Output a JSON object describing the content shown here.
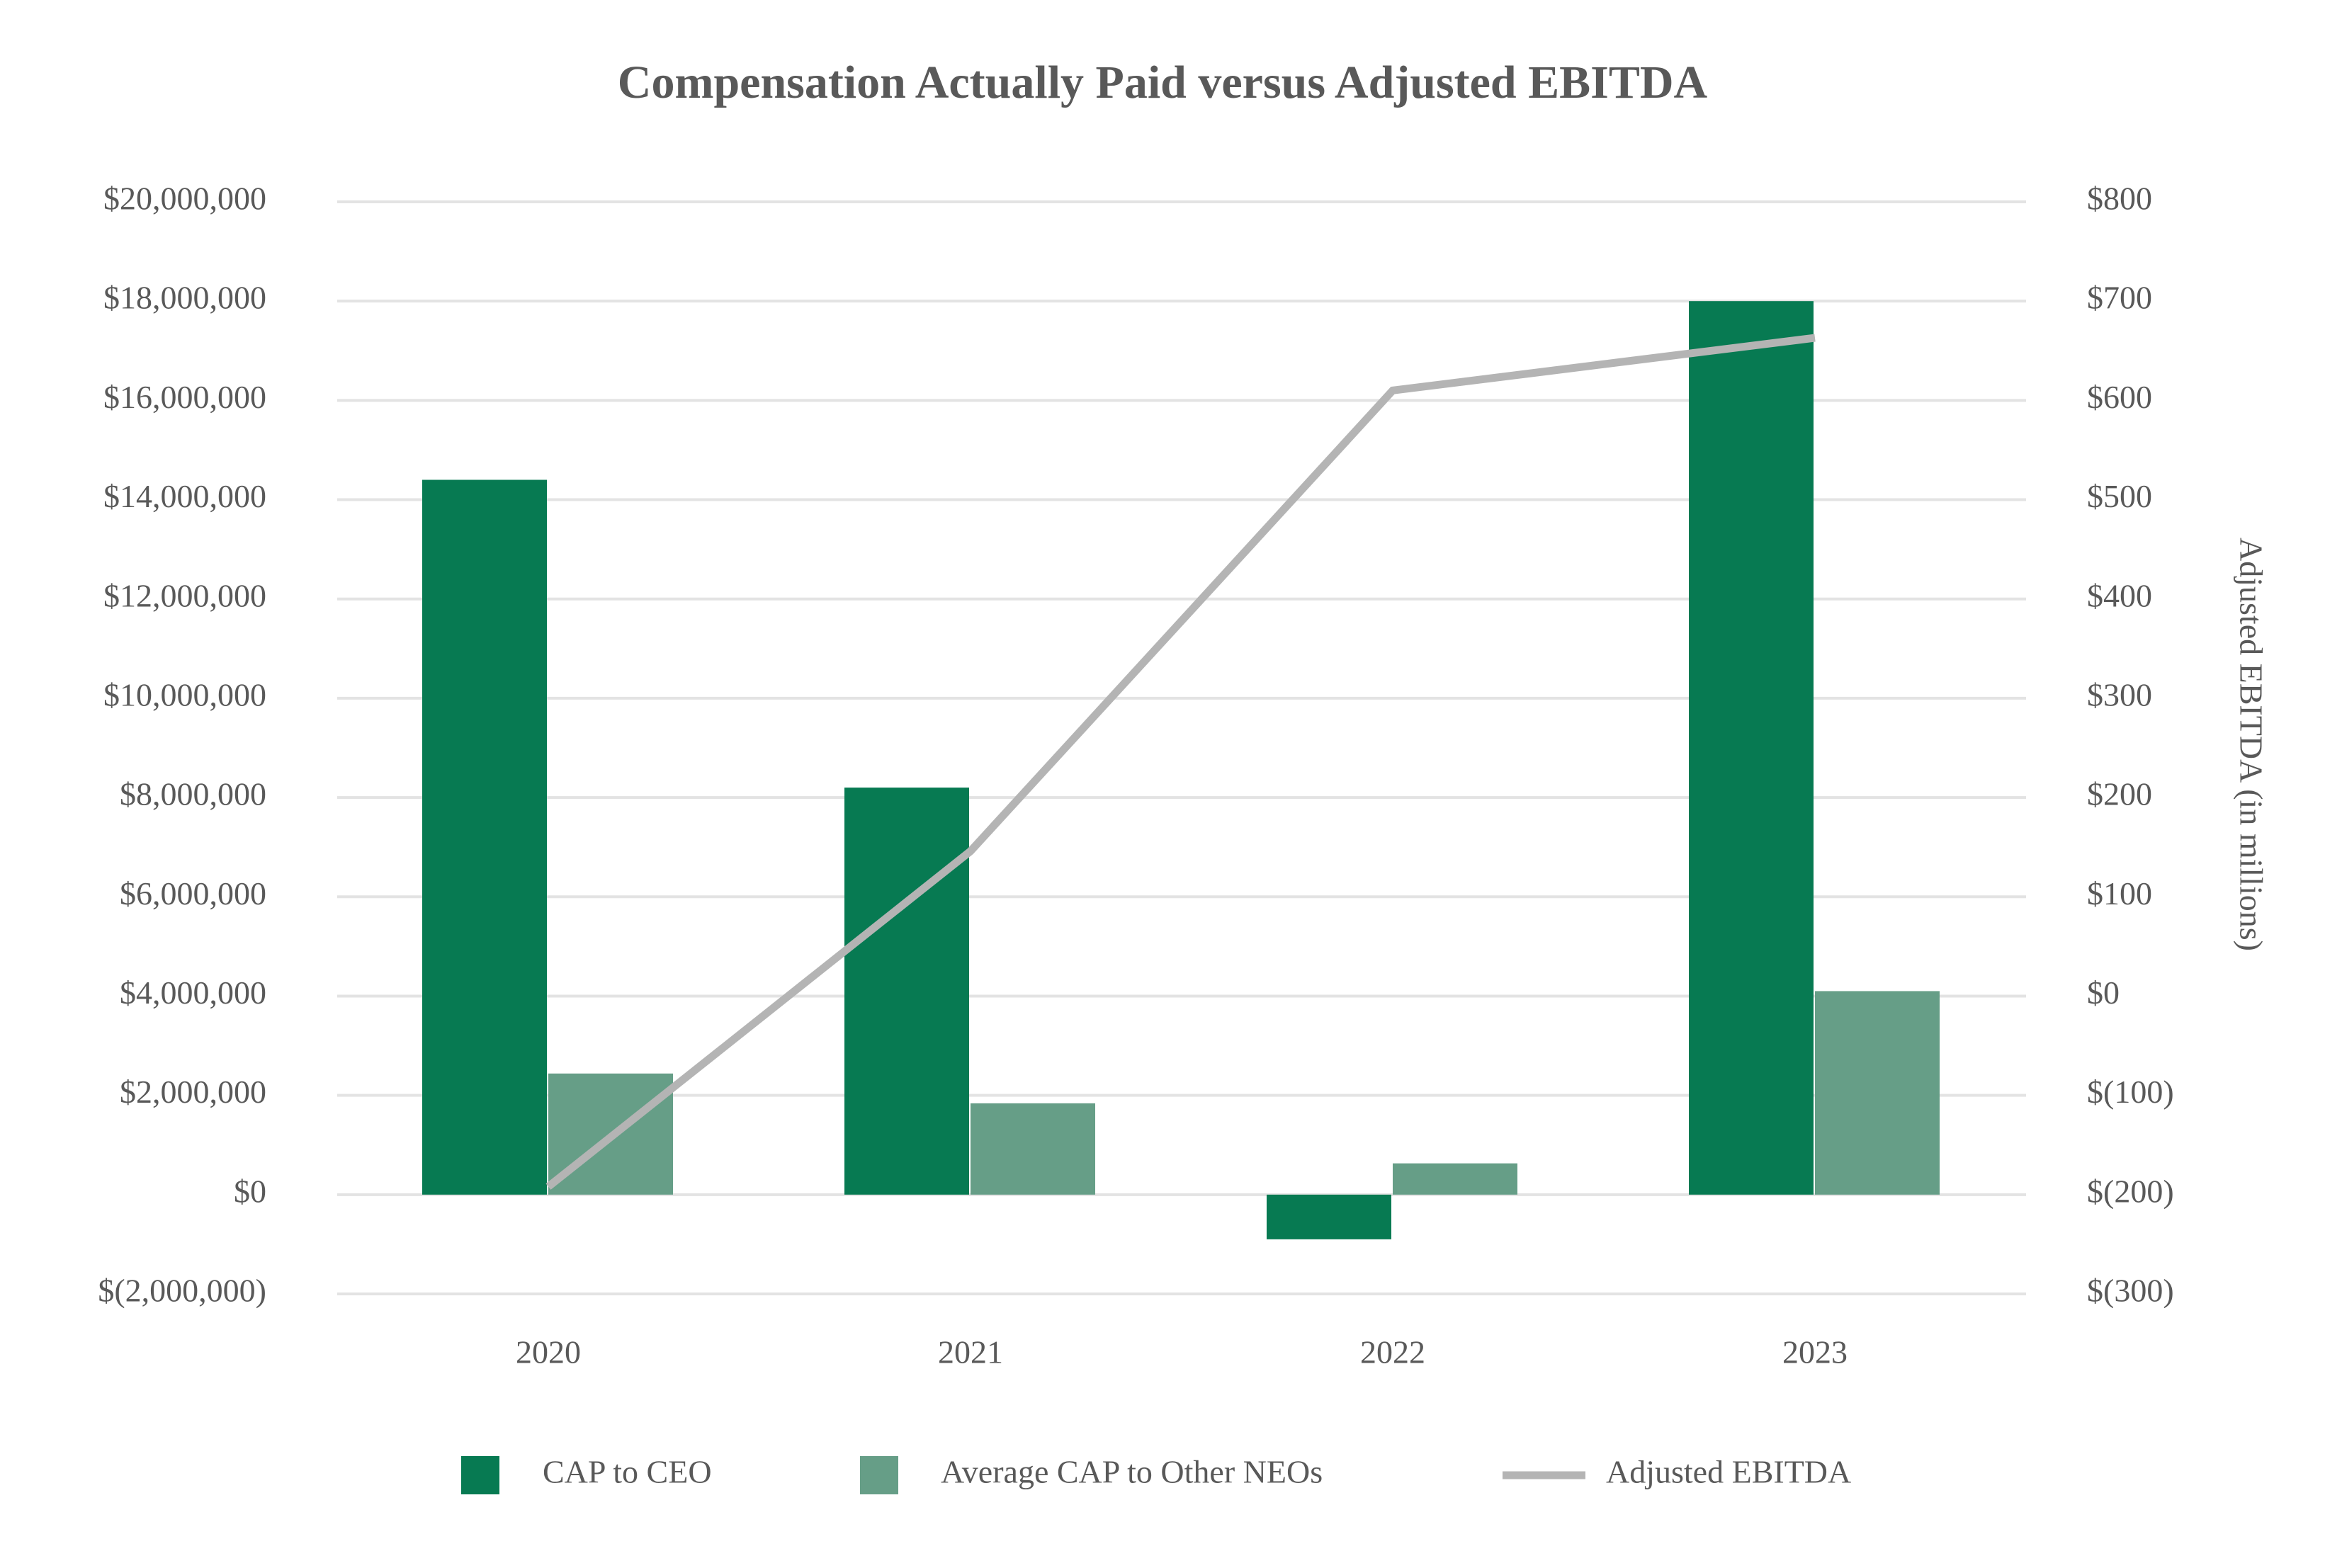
{
  "chart_data": {
    "type": "bar",
    "title": "Compensation Actually Paid versus Adjusted EBITDA",
    "categories": [
      "2020",
      "2021",
      "2022",
      "2023"
    ],
    "series": [
      {
        "name": "CAP to CEO",
        "type": "bar",
        "color": "#077a52",
        "values": [
          14400000,
          8200000,
          -900000,
          18000000
        ]
      },
      {
        "name": "Average CAP to Other NEOs",
        "type": "bar",
        "color": "#669e87",
        "values": [
          2440000,
          1840000,
          630000,
          4100000
        ]
      },
      {
        "name": "Adjusted EBITDA",
        "type": "line",
        "axis": "y2",
        "color": "#b4b4b4",
        "values": [
          -192,
          146,
          610,
          663
        ]
      }
    ],
    "ylim": [
      -2000000,
      20000000
    ],
    "yticks": [
      {
        "value": -2000000,
        "label": "$(2,000,000)"
      },
      {
        "value": 0,
        "label": "$0"
      },
      {
        "value": 2000000,
        "label": "$2,000,000"
      },
      {
        "value": 4000000,
        "label": "$4,000,000"
      },
      {
        "value": 6000000,
        "label": "$6,000,000"
      },
      {
        "value": 8000000,
        "label": "$8,000,000"
      },
      {
        "value": 10000000,
        "label": "$10,000,000"
      },
      {
        "value": 12000000,
        "label": "$12,000,000"
      },
      {
        "value": 14000000,
        "label": "$14,000,000"
      },
      {
        "value": 16000000,
        "label": "$16,000,000"
      },
      {
        "value": 18000000,
        "label": "$18,000,000"
      },
      {
        "value": 20000000,
        "label": "$20,000,000"
      }
    ],
    "y2label": "Adjusted EBITDA (in millions)",
    "y2lim": [
      -300,
      800
    ],
    "y2ticks": [
      {
        "value": -300,
        "label": "$(300)"
      },
      {
        "value": -200,
        "label": "$(200)"
      },
      {
        "value": -100,
        "label": "$(100)"
      },
      {
        "value": 0,
        "label": "$0"
      },
      {
        "value": 100,
        "label": "$100"
      },
      {
        "value": 200,
        "label": "$200"
      },
      {
        "value": 300,
        "label": "$300"
      },
      {
        "value": 400,
        "label": "$400"
      },
      {
        "value": 500,
        "label": "$500"
      },
      {
        "value": 600,
        "label": "$600"
      },
      {
        "value": 700,
        "label": "$700"
      },
      {
        "value": 800,
        "label": "$800"
      }
    ],
    "grid": true,
    "legend": "bottom"
  }
}
